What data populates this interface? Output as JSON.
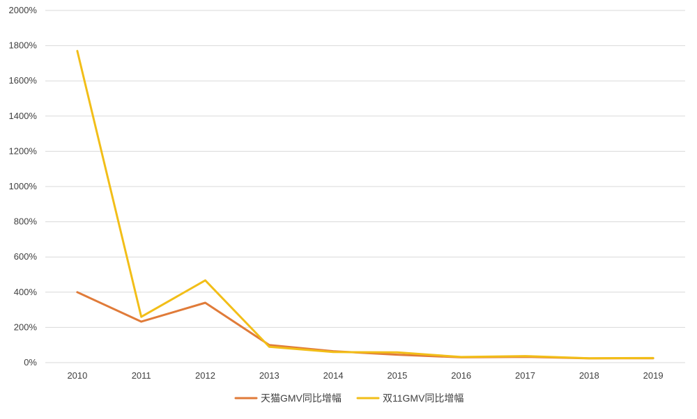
{
  "chart_data": {
    "type": "line",
    "title": "",
    "xlabel": "",
    "ylabel": "",
    "categories": [
      "2010",
      "2011",
      "2012",
      "2013",
      "2014",
      "2015",
      "2016",
      "2017",
      "2018",
      "2019"
    ],
    "ylim": [
      0,
      20
    ],
    "y_ticks": [
      0,
      2,
      4,
      6,
      8,
      10,
      12,
      14,
      16,
      18,
      20
    ],
    "y_tick_labels": [
      "0%",
      "200%",
      "400%",
      "600%",
      "800%",
      "1000%",
      "1200%",
      "1400%",
      "1600%",
      "1800%",
      "2000%"
    ],
    "grid": "horizontal",
    "legend_position": "bottom",
    "series": [
      {
        "name": "天猫GMV同比增幅",
        "color": "#E07B39",
        "values": [
          4.0,
          2.33,
          3.4,
          1.0,
          0.65,
          0.45,
          0.3,
          0.33,
          0.24,
          0.25
        ]
      },
      {
        "name": "双11GMV同比增幅",
        "color": "#F2BE18",
        "values": [
          17.7,
          2.6,
          4.67,
          0.9,
          0.6,
          0.58,
          0.32,
          0.37,
          0.25,
          0.26
        ]
      }
    ]
  }
}
